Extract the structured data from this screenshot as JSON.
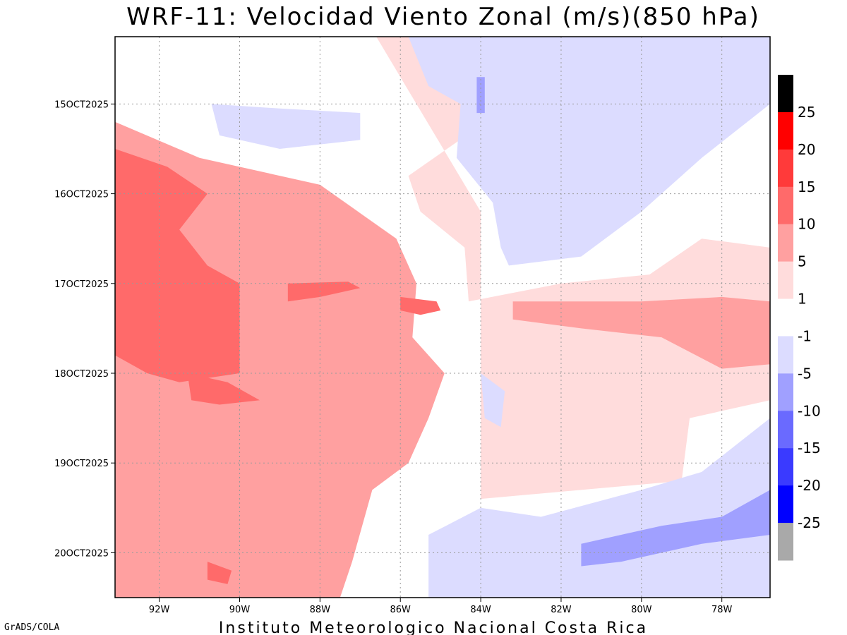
{
  "title": "WRF-11: Velocidad  Viento Zonal (m/s)(850 hPa)",
  "footer": "Instituto Meteorologico Nacional Costa Rica",
  "credit": "GrADS/COLA",
  "chart_data": {
    "type": "heatmap",
    "title": "WRF-11: Velocidad  Viento Zonal (m/s)(850 hPa)",
    "xlabel": "",
    "ylabel": "",
    "x_ticks": [
      "92W",
      "90W",
      "88W",
      "86W",
      "84W",
      "82W",
      "80W",
      "78W"
    ],
    "x_tick_values": [
      -92,
      -90,
      -88,
      -86,
      -84,
      -82,
      -80,
      -78
    ],
    "xlim": [
      -93.1,
      -76.8
    ],
    "y_ticks": [
      "15OCT2025",
      "16OCT2025",
      "17OCT2025",
      "18OCT2025",
      "19OCT2025",
      "20OCT2025"
    ],
    "ylim_days": [
      14.25,
      20.5
    ],
    "grid": true,
    "colorbar": {
      "position": "right",
      "labels": [
        "25",
        "20",
        "15",
        "10",
        "5",
        "1",
        "-1",
        "-5",
        "-10",
        "-15",
        "-20",
        "-25"
      ],
      "levels": [
        {
          "range": "> 25",
          "color": "#000000"
        },
        {
          "range": "20 to 25",
          "color": "#ff0000"
        },
        {
          "range": "15 to 20",
          "color": "#ff3a3a"
        },
        {
          "range": "10 to 15",
          "color": "#ff6a6a"
        },
        {
          "range": "5 to 10",
          "color": "#ffa0a0"
        },
        {
          "range": "1 to 5",
          "color": "#ffdcdc"
        },
        {
          "range": "-1 to 1",
          "color": "#ffffff"
        },
        {
          "range": "-5 to -1",
          "color": "#dcdcff"
        },
        {
          "range": "-10 to -5",
          "color": "#a0a0ff"
        },
        {
          "range": "-15 to -10",
          "color": "#6a6aff"
        },
        {
          "range": "-20 to -15",
          "color": "#3a3aff"
        },
        {
          "range": "-25 to -20",
          "color": "#0000ff"
        },
        {
          "range": "< -25",
          "color": "#a9a9a9"
        }
      ]
    },
    "fields": [
      {
        "level": "1 to 5",
        "color": "#ffdcdc",
        "polygon_lonlat": [
          [
            -93.1,
            14.25
          ],
          [
            -86.6,
            14.25
          ],
          [
            -84.0,
            16.2
          ],
          [
            -84.0,
            19.4
          ],
          [
            -79.0,
            19.2
          ],
          [
            -78.8,
            18.5
          ],
          [
            -76.8,
            18.3
          ],
          [
            -76.8,
            16.6
          ],
          [
            -78.5,
            16.5
          ],
          [
            -79.8,
            16.9
          ],
          [
            -82.0,
            17.0
          ],
          [
            -84.3,
            17.2
          ],
          [
            -84.4,
            16.6
          ],
          [
            -85.5,
            16.2
          ],
          [
            -85.8,
            15.8
          ],
          [
            -84.2,
            15.3
          ],
          [
            -84.4,
            14.6
          ],
          [
            -85.5,
            14.25
          ]
        ]
      },
      {
        "level": "5 to 10",
        "color": "#ffa0a0",
        "polygon_lonlat": [
          [
            -93.1,
            15.2
          ],
          [
            -91.0,
            15.6
          ],
          [
            -88.0,
            15.9
          ],
          [
            -86.1,
            16.5
          ],
          [
            -85.6,
            17.0
          ],
          [
            -85.7,
            17.6
          ],
          [
            -84.9,
            18.0
          ],
          [
            -85.3,
            18.5
          ],
          [
            -85.8,
            19.0
          ],
          [
            -86.7,
            19.3
          ],
          [
            -87.2,
            20.1
          ],
          [
            -87.5,
            20.5
          ],
          [
            -93.1,
            20.5
          ]
        ]
      },
      {
        "level": "5 to 10",
        "color": "#ffa0a0",
        "polygon_lonlat": [
          [
            -83.2,
            17.2
          ],
          [
            -80.0,
            17.2
          ],
          [
            -78.0,
            17.15
          ],
          [
            -76.8,
            17.2
          ],
          [
            -76.8,
            17.9
          ],
          [
            -78.0,
            17.95
          ],
          [
            -79.5,
            17.6
          ],
          [
            -81.5,
            17.5
          ],
          [
            -83.2,
            17.4
          ]
        ]
      },
      {
        "level": "10 to 15",
        "color": "#ff6a6a",
        "polygon_lonlat": [
          [
            -93.1,
            15.5
          ],
          [
            -91.8,
            15.7
          ],
          [
            -90.8,
            16.0
          ],
          [
            -91.5,
            16.4
          ],
          [
            -90.8,
            16.8
          ],
          [
            -90.0,
            17.0
          ],
          [
            -90.0,
            18.0
          ],
          [
            -91.5,
            18.1
          ],
          [
            -92.3,
            18.0
          ],
          [
            -93.1,
            17.8
          ]
        ]
      },
      {
        "level": "10 to 15",
        "color": "#ff6a6a",
        "polygon_lonlat": [
          [
            -88.8,
            17.0
          ],
          [
            -87.3,
            16.98
          ],
          [
            -87.0,
            17.05
          ],
          [
            -88.0,
            17.15
          ],
          [
            -88.8,
            17.2
          ]
        ]
      },
      {
        "level": "10 to 15",
        "color": "#ff6a6a",
        "polygon_lonlat": [
          [
            -86.0,
            17.15
          ],
          [
            -85.1,
            17.2
          ],
          [
            -85.0,
            17.3
          ],
          [
            -85.5,
            17.35
          ],
          [
            -86.0,
            17.3
          ]
        ]
      },
      {
        "level": "10 to 15",
        "color": "#ff6a6a",
        "polygon_lonlat": [
          [
            -91.3,
            18.0
          ],
          [
            -90.3,
            18.1
          ],
          [
            -89.5,
            18.3
          ],
          [
            -90.5,
            18.35
          ],
          [
            -91.2,
            18.3
          ]
        ]
      },
      {
        "level": "10 to 15",
        "color": "#ff6a6a",
        "polygon_lonlat": [
          [
            -90.8,
            20.1
          ],
          [
            -90.2,
            20.2
          ],
          [
            -90.3,
            20.35
          ],
          [
            -90.8,
            20.3
          ]
        ]
      },
      {
        "level": "-5 to -1",
        "color": "#dcdcff",
        "polygon_lonlat": [
          [
            -85.8,
            14.25
          ],
          [
            -76.8,
            14.25
          ],
          [
            -76.8,
            15.0
          ],
          [
            -78.5,
            15.6
          ],
          [
            -80.0,
            16.2
          ],
          [
            -81.5,
            16.7
          ],
          [
            -83.3,
            16.8
          ],
          [
            -83.5,
            16.6
          ],
          [
            -83.7,
            16.1
          ],
          [
            -84.6,
            15.6
          ],
          [
            -84.5,
            15.0
          ],
          [
            -85.3,
            14.8
          ]
        ]
      },
      {
        "level": "-5 to -1",
        "color": "#dcdcff",
        "polygon_lonlat": [
          [
            -90.7,
            15.0
          ],
          [
            -89.0,
            15.05
          ],
          [
            -87.0,
            15.1
          ],
          [
            -87.0,
            15.4
          ],
          [
            -89.0,
            15.5
          ],
          [
            -90.5,
            15.35
          ]
        ]
      },
      {
        "level": "-5 to -1",
        "color": "#dcdcff",
        "polygon_lonlat": [
          [
            -84.0,
            18.0
          ],
          [
            -83.4,
            18.2
          ],
          [
            -83.5,
            18.6
          ],
          [
            -83.9,
            18.5
          ]
        ]
      },
      {
        "level": "-5 to -1",
        "color": "#dcdcff",
        "polygon_lonlat": [
          [
            -85.3,
            19.8
          ],
          [
            -84.0,
            19.5
          ],
          [
            -82.5,
            19.6
          ],
          [
            -80.0,
            19.3
          ],
          [
            -78.5,
            19.1
          ],
          [
            -76.8,
            18.5
          ],
          [
            -76.8,
            20.5
          ],
          [
            -85.3,
            20.5
          ]
        ]
      },
      {
        "level": "-10 to -5",
        "color": "#a0a0ff",
        "polygon_lonlat": [
          [
            -81.5,
            19.9
          ],
          [
            -79.5,
            19.7
          ],
          [
            -78.0,
            19.6
          ],
          [
            -76.8,
            19.3
          ],
          [
            -76.8,
            19.8
          ],
          [
            -78.5,
            19.9
          ],
          [
            -80.5,
            20.1
          ],
          [
            -81.5,
            20.15
          ]
        ]
      },
      {
        "level": "-10 to -5",
        "color": "#a0a0ff",
        "polygon_lonlat": [
          [
            -84.1,
            14.7
          ],
          [
            -83.9,
            14.7
          ],
          [
            -83.9,
            15.1
          ],
          [
            -84.1,
            15.1
          ]
        ]
      }
    ]
  }
}
